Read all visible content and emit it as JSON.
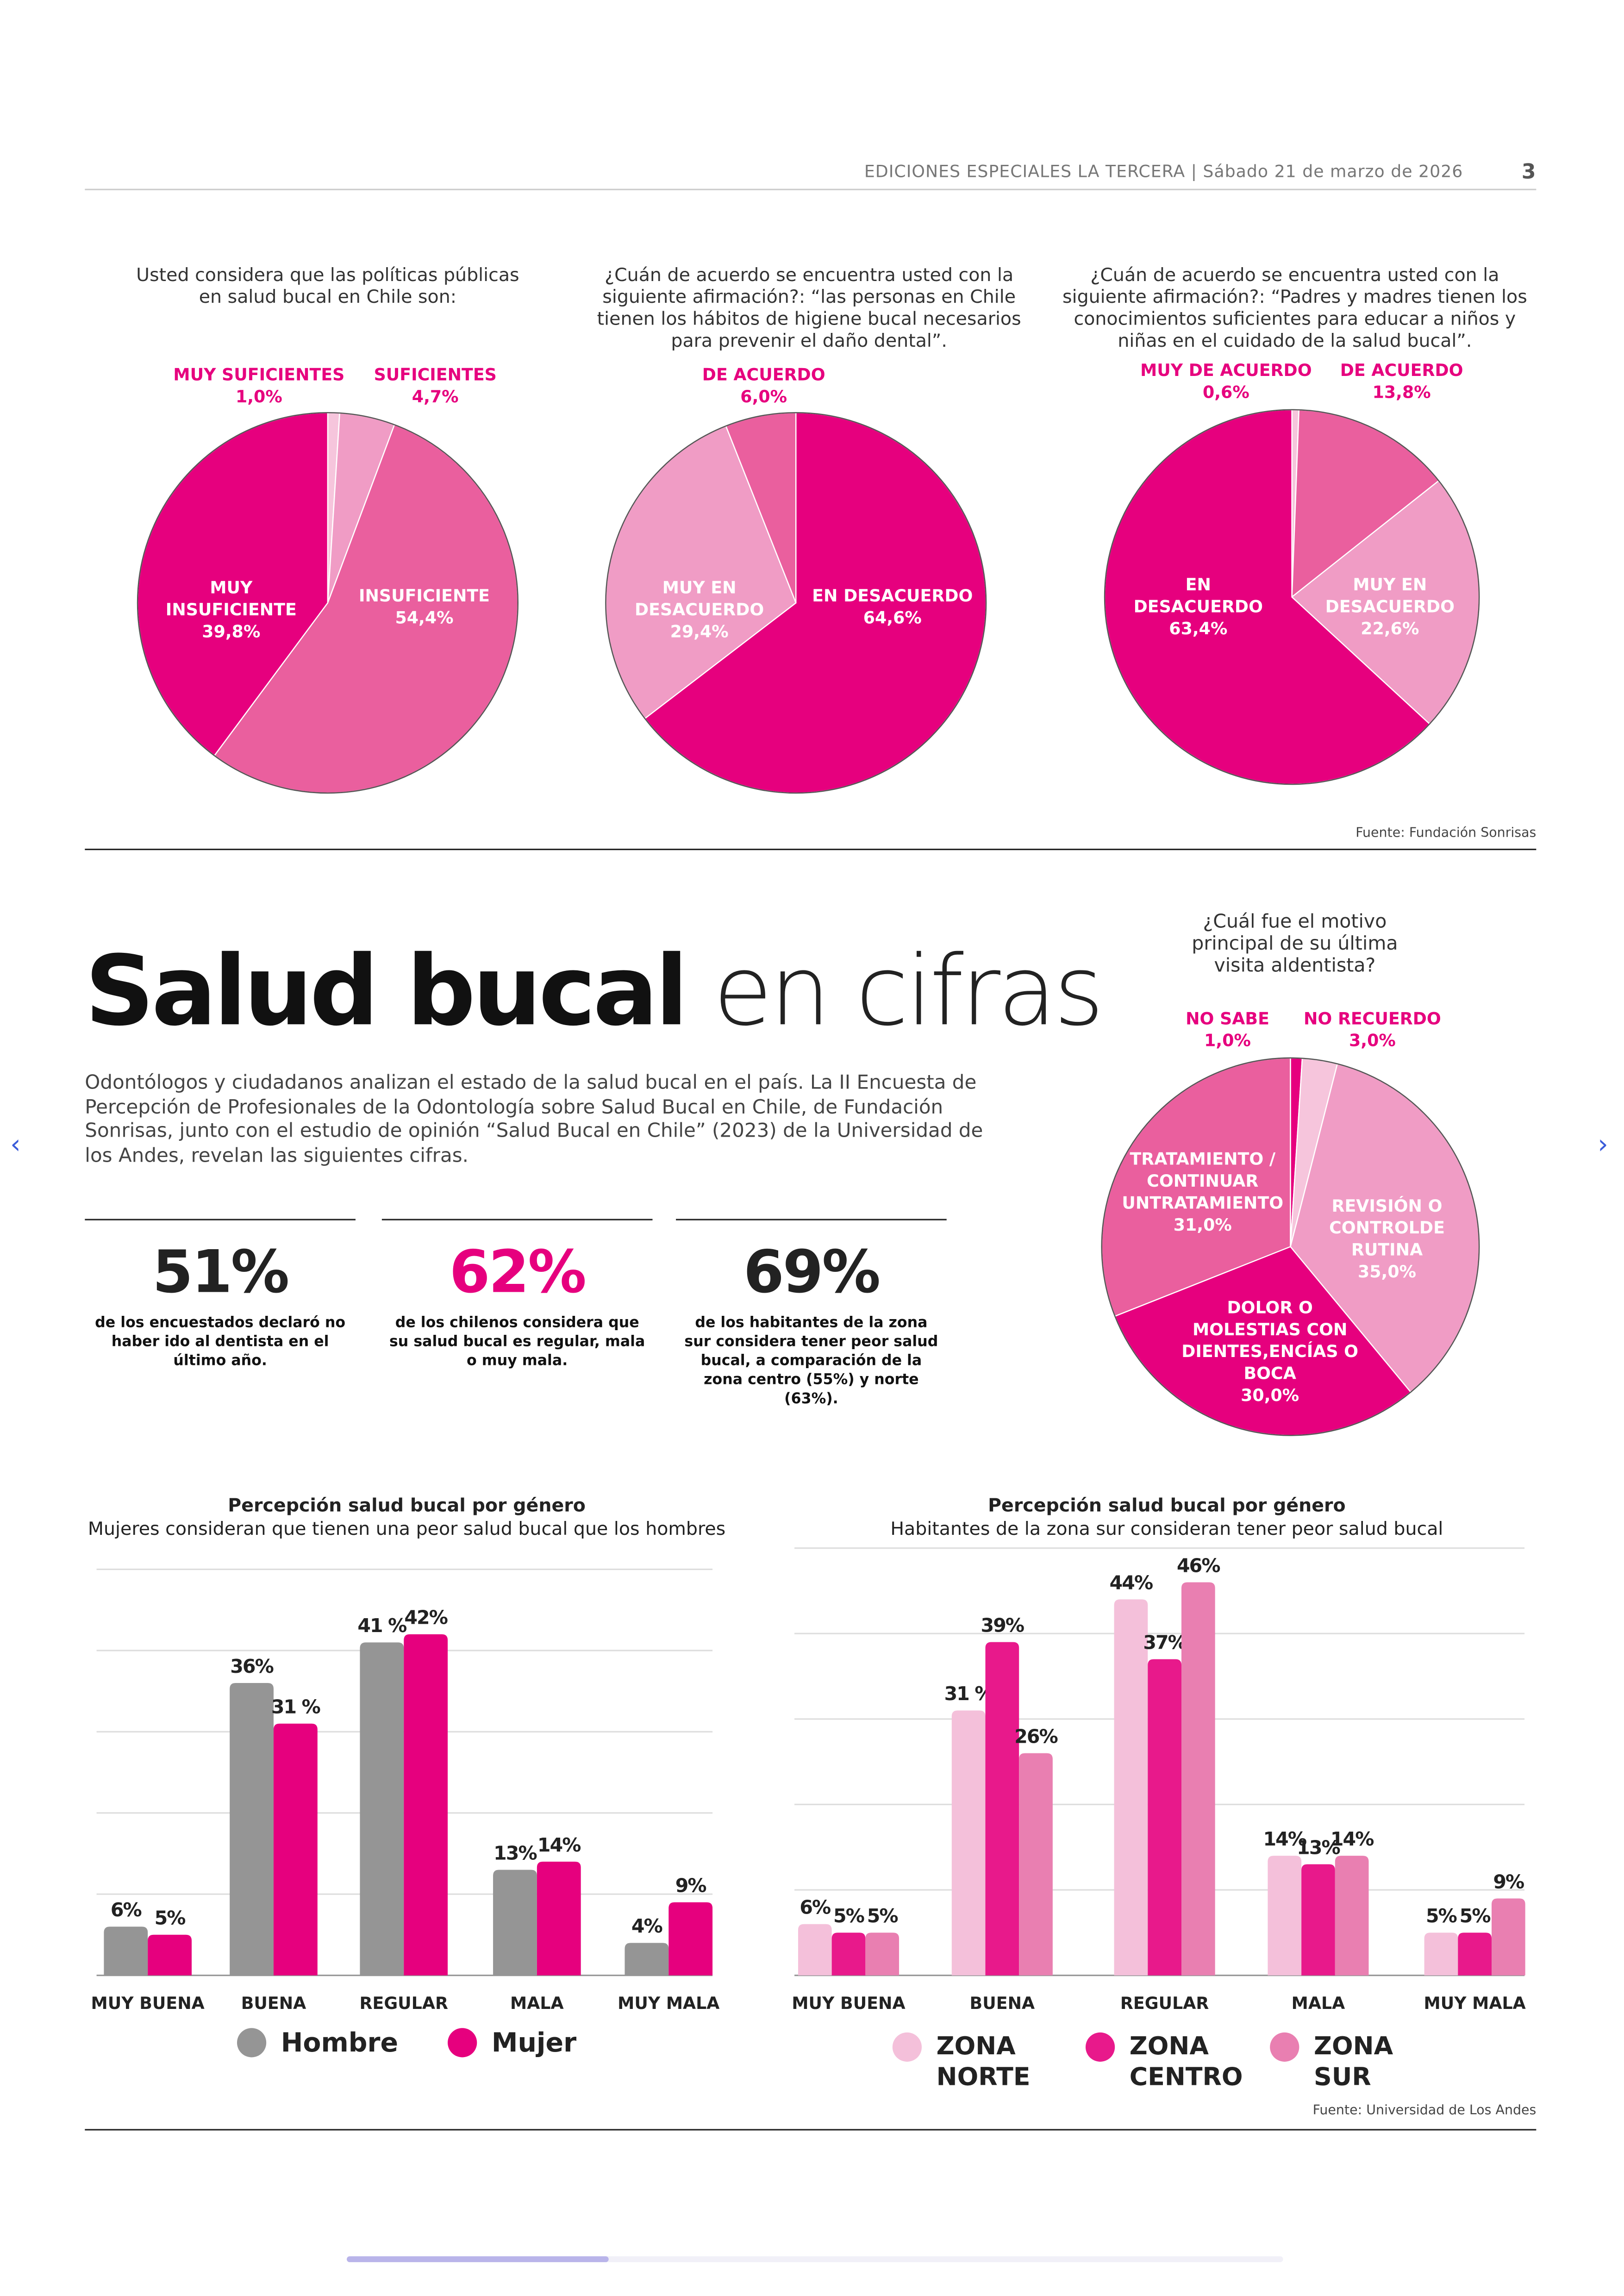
{
  "header": {
    "publication": "EDICIONES ESPECIALES LA TERCERA | Sábado 21 de marzo de 2026",
    "page_number": "3"
  },
  "colors": {
    "magenta": "#e6007e",
    "mid_pink": "#ea5f9e",
    "light_pink": "#f09cc5",
    "pale_pink": "#f6c5dc",
    "gray": "#959595"
  },
  "chart_data": [
    {
      "type": "pie",
      "title": "Usted considera que las políticas públicas en salud bucal en Chile son:",
      "slices": [
        {
          "label": "MUY SUFICIENTES",
          "value": 1.0,
          "value_text": "1,0%",
          "color": "#f6c5dc"
        },
        {
          "label": "SUFICIENTES",
          "value": 4.7,
          "value_text": "4,7%",
          "color": "#f09cc5"
        },
        {
          "label": "INSUFICIENTE",
          "value": 54.4,
          "value_text": "54,4%",
          "color": "#ea5f9e"
        },
        {
          "label": "MUY INSUFICIENTE",
          "value": 39.8,
          "value_text": "39,8%",
          "color": "#e6007e"
        }
      ]
    },
    {
      "type": "pie",
      "title": "¿Cuán de acuerdo se encuentra usted con la siguiente afirmación?: “las personas en Chile tienen los hábitos de higiene bucal necesarios para prevenir el daño dental”.",
      "slices": [
        {
          "label": "EN DESACUERDO",
          "value": 64.6,
          "value_text": "64,6%",
          "color": "#e6007e"
        },
        {
          "label": "MUY EN DESACUERDO",
          "value": 29.4,
          "value_text": "29,4%",
          "color": "#f09cc5"
        },
        {
          "label": "DE ACUERDO",
          "value": 6.0,
          "value_text": "6,0%",
          "color": "#ea5f9e"
        }
      ]
    },
    {
      "type": "pie",
      "title": "¿Cuán de acuerdo se encuentra usted con la siguiente afirmación?: “Padres y madres tienen los conocimientos suficientes para educar a niños y niñas en el cuidado de la salud bucal”.",
      "slices": [
        {
          "label": "MUY DE ACUERDO",
          "value": 0.6,
          "value_text": "0,6%",
          "color": "#f6c5dc"
        },
        {
          "label": "DE ACUERDO",
          "value": 13.8,
          "value_text": "13,8%",
          "color": "#ea5f9e"
        },
        {
          "label": "MUY EN DESACUERDO",
          "value": 22.6,
          "value_text": "22,6%",
          "color": "#f09cc5"
        },
        {
          "label": "EN DESACUERDO",
          "value": 63.4,
          "value_text": "63,4%",
          "color": "#e6007e"
        }
      ]
    },
    {
      "type": "pie",
      "title": "¿Cuál fue el motivo principal de su última visita aldentista?",
      "slices": [
        {
          "label": "NO SABE",
          "value": 1.0,
          "value_text": "1,0%",
          "color": "#e6007e"
        },
        {
          "label": "NO RECUERDO",
          "value": 3.0,
          "value_text": "3,0%",
          "color": "#f6c5dc"
        },
        {
          "label": "REVISIÓN O CONTROLDE RUTINA",
          "value": 35.0,
          "value_text": "35,0%",
          "color": "#f09cc5"
        },
        {
          "label": "DOLOR O MOLESTIAS CON DIENTES,ENCÍAS O BOCA",
          "value": 30.0,
          "value_text": "30,0%",
          "color": "#e6007e"
        },
        {
          "label": "TRATAMIENTO / CONTINUAR UNTRATAMIENTO",
          "value": 31.0,
          "value_text": "31,0%",
          "color": "#ea5f9e"
        }
      ]
    },
    {
      "type": "bar",
      "title": "Percepción salud bucal por género",
      "subtitle": "Mujeres consideran que tienen una peor salud bucal que los hombres",
      "categories": [
        "MUY BUENA",
        "BUENA",
        "REGULAR",
        "MALA",
        "MUY MALA"
      ],
      "ylim": [
        0,
        50
      ],
      "grid": true,
      "series": [
        {
          "name": "Hombre",
          "values": [
            6,
            36,
            41,
            13,
            4
          ],
          "labels": [
            "6%",
            "36%",
            "41 %",
            "13%",
            "4%"
          ],
          "color": "#959595"
        },
        {
          "name": "Mujer",
          "values": [
            5,
            31,
            42,
            14,
            9
          ],
          "labels": [
            "5%",
            "31 %",
            "42%",
            "14%",
            "9%"
          ],
          "color": "#e6007e"
        }
      ]
    },
    {
      "type": "bar",
      "title": "Percepción salud bucal por género",
      "subtitle": "Habitantes de la zona sur consideran tener peor salud bucal",
      "categories": [
        "MUY BUENA",
        "BUENA",
        "REGULAR",
        "MALA",
        "MUY MALA"
      ],
      "ylim": [
        0,
        50
      ],
      "grid": true,
      "series": [
        {
          "name": "ZONA NORTE",
          "values": [
            6,
            31,
            44,
            14,
            5
          ],
          "labels": [
            "6%",
            "31 %",
            "44%",
            "14%",
            "5%"
          ],
          "color": "#f4c0da"
        },
        {
          "name": "ZONA CENTRO",
          "values": [
            5,
            39,
            37,
            13,
            5
          ],
          "labels": [
            "5%",
            "39%",
            "37%",
            "13%",
            "5%"
          ],
          "color": "#e8198b"
        },
        {
          "name": "ZONA SUR",
          "values": [
            5,
            26,
            46,
            14,
            9
          ],
          "labels": [
            "5%",
            "26%",
            "46%",
            "14%",
            "9%"
          ],
          "color": "#e97fb1"
        }
      ]
    }
  ],
  "source_top": "Fuente: Fundación Sonrisas",
  "source_bottom": "Fuente: Universidad de Los Andes",
  "article": {
    "title_bold": "Salud bucal",
    "title_light": "en cifras",
    "intro": "Odontólogos y ciudadanos analizan el estado de la salud bucal en el país. La II Encuesta de Percepción de Profesionales de la Odontología sobre Salud Bucal en Chile, de Fundación Sonrisas, junto con el estudio de opinión “Salud Bucal en Chile” (2023) de la Universidad de los Andes, revelan las siguientes cifras.",
    "stats": [
      {
        "number": "51%",
        "text": "de los encuestados declaró no haber ido al dentista en el último año.",
        "color": "#111111"
      },
      {
        "number": "62%",
        "text": "de los chilenos considera que su salud bucal es regular, mala o muy mala.",
        "color": "#e6007e"
      },
      {
        "number": "69%",
        "text": "de los habitantes de la zona sur considera tener peor salud bucal, a comparación de la zona centro (55%) y norte (63%).",
        "color": "#111111"
      }
    ]
  },
  "nav": {
    "prev_icon": "‹",
    "next_icon": "›",
    "scroll_progress": 0.28
  }
}
